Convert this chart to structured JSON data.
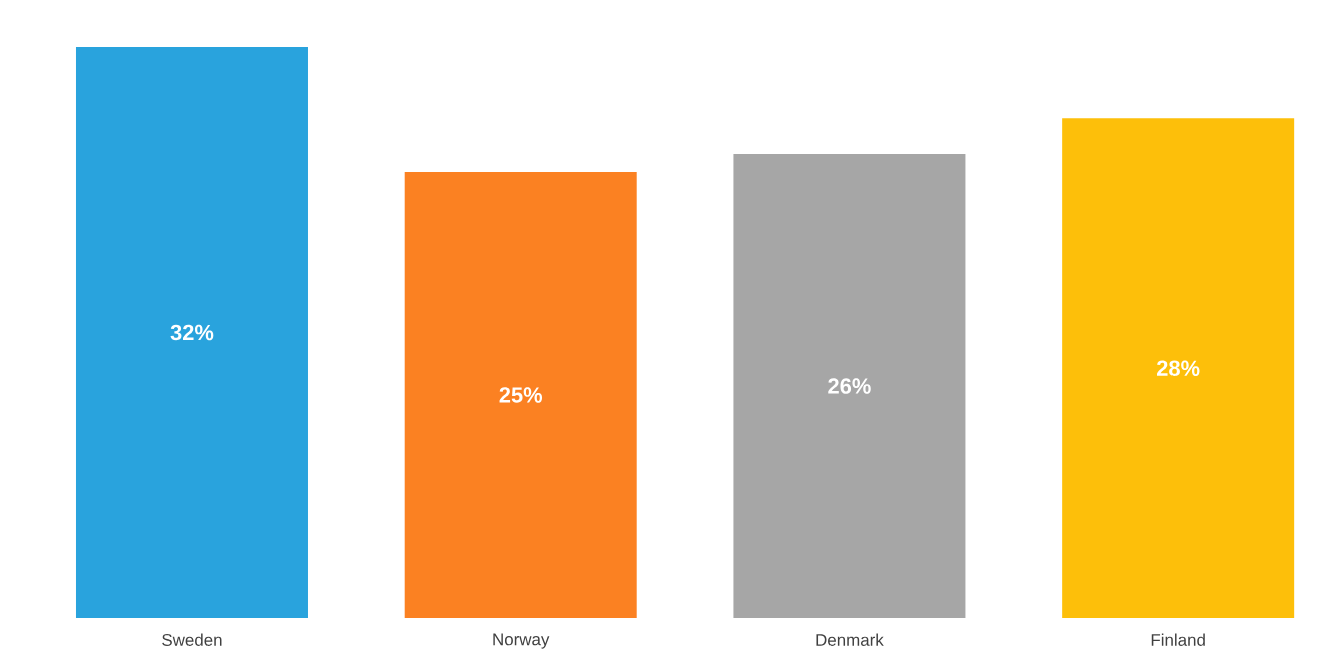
{
  "chart_data": {
    "type": "bar",
    "categories": [
      "Sweden",
      "Norway",
      "Denmark",
      "Finland"
    ],
    "values": [
      32,
      25,
      26,
      28
    ],
    "value_labels": [
      "32%",
      "25%",
      "26%",
      "28%"
    ],
    "colors": [
      "#29a3dd",
      "#fb8122",
      "#a6a6a6",
      "#fdbf0a"
    ]
  }
}
